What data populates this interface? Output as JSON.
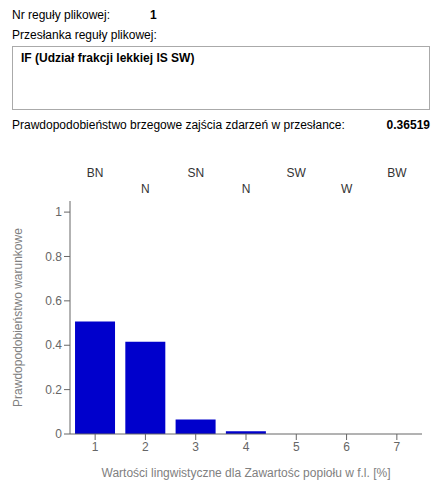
{
  "chart_data": {
    "type": "bar",
    "x": [
      1,
      2,
      3,
      4,
      5,
      6,
      7
    ],
    "values": [
      0.507,
      0.416,
      0.065,
      0.012,
      0.0,
      0.0,
      0.0
    ],
    "color": "#0000CC",
    "xlim": [
      0.5,
      7.5
    ],
    "xticks": [
      1,
      2,
      3,
      4,
      5,
      6,
      7
    ],
    "ylim": [
      0,
      1.05
    ],
    "yticks": [
      0,
      0.2,
      0.4,
      0.6,
      0.8,
      1
    ],
    "xlabel": "Wartości lingwistyczne dla Zawartośc popiołu w f.l. [%]",
    "ylabel": "Prawdopodobieństwo warunkowe",
    "grid": false,
    "annotations": [
      {
        "text": "Nr reguły plikowej:"
      },
      {
        "text": "1"
      },
      {
        "text": "Przesłanka reguły plikowej:"
      },
      {
        "text": "IF (Udział frakcji lekkiej IS SW)"
      },
      {
        "text": "Prawdopodobieństwo brzegowe zajścia zdarzeń w przesłance:"
      },
      {
        "text": "0.36519"
      },
      {
        "text": "BN",
        "x": 1
      },
      {
        "text": "N",
        "x": 2
      },
      {
        "text": "SN",
        "x": 3
      },
      {
        "text": "N",
        "x": 4
      },
      {
        "text": "SW",
        "x": 5
      },
      {
        "text": "W",
        "x": 6
      },
      {
        "text": "BW",
        "x": 7
      }
    ]
  }
}
